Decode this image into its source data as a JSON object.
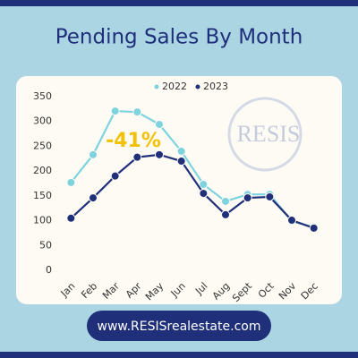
{
  "chart_data": {
    "type": "line",
    "title": "Pending Sales By Month",
    "categories": [
      "Jan",
      "Feb",
      "Mar",
      "Apr",
      "May",
      "Jun",
      "Jul",
      "Aug",
      "Sept",
      "Oct",
      "Nov",
      "Dec"
    ],
    "series": [
      {
        "name": "2022",
        "color": "#7fd3df",
        "values": [
          177,
          233,
          321,
          319,
          294,
          240,
          173,
          139,
          153,
          153,
          99,
          87
        ]
      },
      {
        "name": "2023",
        "color": "#1f2f7a",
        "values": [
          105,
          146,
          190,
          228,
          233,
          220,
          155,
          112,
          146,
          148,
          101,
          85
        ]
      }
    ],
    "ylim": [
      0,
      350
    ],
    "yticks": [
      0,
      50,
      100,
      150,
      200,
      250,
      300,
      350
    ],
    "annotation": "-41%",
    "annotation_color": "#f2c100"
  },
  "logo": "RESIS",
  "footer": "www.RESISrealestate.com"
}
